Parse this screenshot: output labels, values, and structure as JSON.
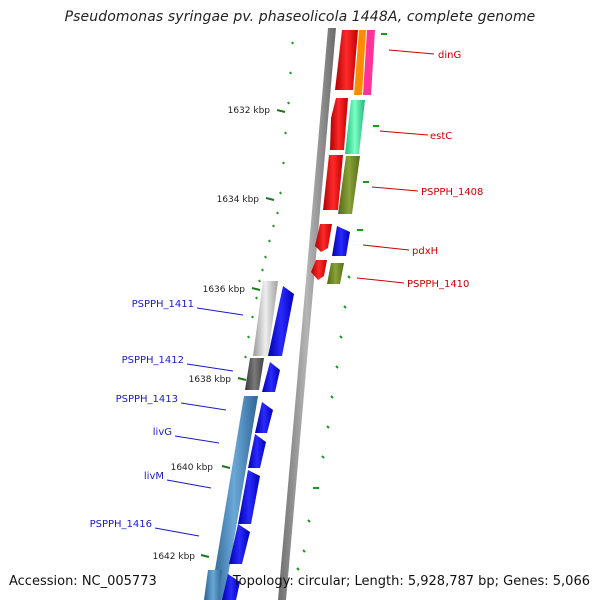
{
  "title": "Pseudomonas syringae pv. phaseolicola 1448A, complete genome",
  "footer": {
    "accession": "Accession: NC_005773",
    "summary": "Topology: circular; Length: 5,928,787 bp; Genes: 5,066"
  },
  "ticks": [
    "1632 kbp",
    "1634 kbp",
    "1636 kbp",
    "1638 kbp",
    "1640 kbp",
    "1642 kbp"
  ],
  "genes_forward": [
    "dinG",
    "estC",
    "PSPPH_1408",
    "pdxH",
    "PSPPH_1410"
  ],
  "genes_reverse": [
    "PSPPH_1411",
    "PSPPH_1412",
    "PSPPH_1413",
    "livG",
    "livM",
    "PSPPH_1416"
  ],
  "colors": {
    "backbone": "#8a8a8a",
    "forward_strand": "#ff0000",
    "reverse_strand": "#0000ff",
    "forward_label": "#cc0000",
    "reverse_label": "#1a1acc",
    "tick": "#1a7a1a"
  }
}
